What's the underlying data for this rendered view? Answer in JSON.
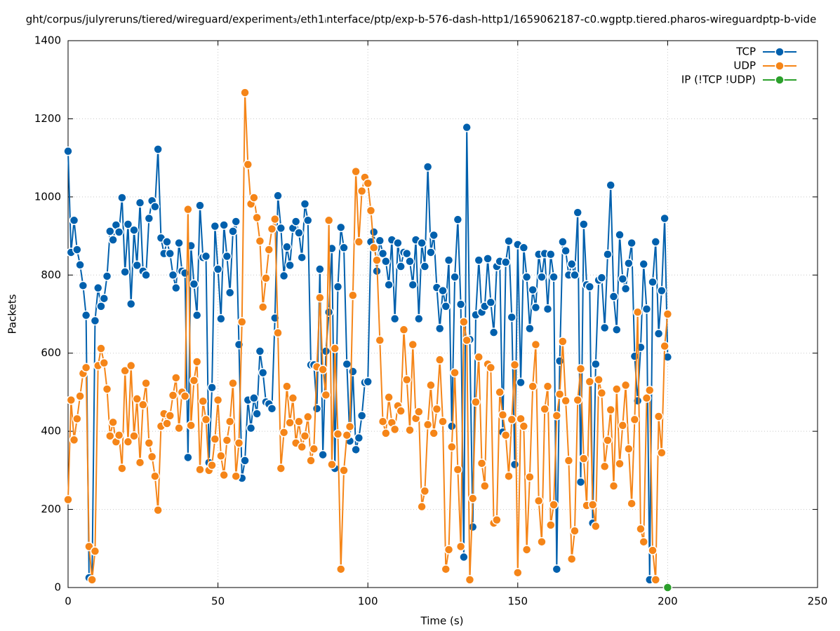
{
  "chart_data": {
    "type": "line",
    "title": "ght/corpus/julyreruns/tiered/wireguard/experiment₃/eth1ᵢnterface/ptp/exp-b-576-dash-http1/1659062187-c0.wgptp.tiered.pharos-wireguardptp-b-vide",
    "x_label": "Time (s)",
    "y_label": "Packets",
    "xlim": [
      0,
      250
    ],
    "xticks": [
      0,
      50,
      100,
      150,
      200,
      250
    ],
    "ylim": [
      0,
      1400
    ],
    "yticks": [
      0,
      200,
      400,
      600,
      800,
      1000,
      1200,
      1400
    ],
    "grid": true,
    "legend": "top-right",
    "x": [
      0,
      1,
      2,
      3,
      4,
      5,
      6,
      7,
      8,
      9,
      10,
      11,
      12,
      13,
      14,
      15,
      16,
      17,
      18,
      19,
      20,
      21,
      22,
      23,
      24,
      25,
      26,
      27,
      28,
      29,
      30,
      31,
      32,
      33,
      34,
      35,
      36,
      37,
      38,
      39,
      40,
      41,
      42,
      43,
      44,
      45,
      46,
      47,
      48,
      49,
      50,
      51,
      52,
      53,
      54,
      55,
      56,
      57,
      58,
      59,
      60,
      61,
      62,
      63,
      64,
      65,
      66,
      67,
      68,
      69,
      70,
      71,
      72,
      73,
      74,
      75,
      76,
      77,
      78,
      79,
      80,
      81,
      82,
      83,
      84,
      85,
      86,
      87,
      88,
      89,
      90,
      91,
      92,
      93,
      94,
      95,
      96,
      97,
      98,
      99,
      100,
      101,
      102,
      103,
      104,
      105,
      106,
      107,
      108,
      109,
      110,
      111,
      112,
      113,
      114,
      115,
      116,
      117,
      118,
      119,
      120,
      121,
      122,
      123,
      124,
      125,
      126,
      127,
      128,
      129,
      130,
      131,
      132,
      133,
      134,
      135,
      136,
      137,
      138,
      139,
      140,
      141,
      142,
      143,
      144,
      145,
      146,
      147,
      148,
      149,
      150,
      151,
      152,
      153,
      154,
      155,
      156,
      157,
      158,
      159,
      160,
      161,
      162,
      163,
      164,
      165,
      166,
      167,
      168,
      169,
      170,
      171,
      172,
      173,
      174,
      175,
      176,
      177,
      178,
      179,
      180,
      181,
      182,
      183,
      184,
      185,
      186,
      187,
      188,
      189,
      190,
      191,
      192,
      193,
      194,
      195,
      196,
      197,
      198,
      199,
      200
    ],
    "series": [
      {
        "name": "TCP",
        "color": "#0060ad",
        "values": [
          1117,
          858,
          940,
          865,
          826,
          773,
          697,
          25,
          20,
          683,
          767,
          720,
          740,
          797,
          912,
          890,
          928,
          910,
          998,
          808,
          930,
          726,
          915,
          825,
          985,
          810,
          800,
          945,
          990,
          975,
          1122,
          895,
          855,
          885,
          855,
          800,
          767,
          882,
          810,
          805,
          333,
          875,
          777,
          697,
          978,
          845,
          848,
          320,
          512,
          925,
          815,
          688,
          928,
          848,
          755,
          912,
          937,
          622,
          280,
          325,
          480,
          408,
          485,
          445,
          605,
          550,
          475,
          470,
          458,
          690,
          1003,
          920,
          798,
          872,
          825,
          920,
          937,
          908,
          845,
          982,
          940,
          570,
          570,
          458,
          815,
          340,
          605,
          705,
          868,
          305,
          770,
          922,
          870,
          572,
          375,
          553,
          353,
          383,
          440,
          525,
          527,
          885,
          910,
          810,
          888,
          855,
          835,
          775,
          890,
          688,
          882,
          822,
          858,
          855,
          835,
          775,
          890,
          688,
          882,
          822,
          1077,
          858,
          902,
          768,
          663,
          760,
          720,
          838,
          413,
          795,
          942,
          725,
          78,
          1178,
          635,
          155,
          698,
          838,
          705,
          720,
          842,
          730,
          653,
          822,
          835,
          398,
          833,
          887,
          692,
          315,
          878,
          525,
          870,
          795,
          663,
          762,
          717,
          853,
          795,
          855,
          713,
          853,
          795,
          47,
          580,
          885,
          862,
          800,
          828,
          800,
          960,
          270,
          930,
          775,
          770,
          165,
          572,
          787,
          793,
          665,
          853,
          1030,
          745,
          660,
          903,
          790,
          765,
          830,
          882,
          592,
          478,
          615,
          828,
          713,
          20,
          782,
          885,
          650,
          760,
          945,
          590
        ]
      },
      {
        "name": "UDP",
        "color": "#f58518",
        "values": [
          225,
          480,
          378,
          432,
          490,
          548,
          563,
          105,
          20,
          93,
          568,
          612,
          575,
          508,
          388,
          423,
          373,
          390,
          305,
          555,
          373,
          568,
          388,
          483,
          320,
          468,
          523,
          370,
          335,
          285,
          198,
          413,
          445,
          420,
          440,
          492,
          537,
          408,
          500,
          490,
          968,
          415,
          530,
          578,
          302,
          477,
          430,
          300,
          313,
          380,
          480,
          337,
          288,
          377,
          425,
          523,
          285,
          370,
          680,
          1267,
          1083,
          982,
          998,
          947,
          887,
          718,
          792,
          865,
          918,
          943,
          652,
          305,
          397,
          515,
          422,
          485,
          370,
          425,
          360,
          388,
          437,
          325,
          355,
          565,
          742,
          558,
          493,
          940,
          315,
          612,
          393,
          47,
          300,
          390,
          412,
          748,
          1065,
          885,
          1015,
          1050,
          1035,
          965,
          870,
          838,
          633,
          425,
          395,
          487,
          422,
          405,
          465,
          452,
          660,
          532,
          403,
          622,
          433,
          450,
          207,
          247,
          417,
          518,
          395,
          457,
          583,
          425,
          47,
          97,
          360,
          550,
          302,
          105,
          680,
          633,
          20,
          228,
          475,
          590,
          318,
          260,
          572,
          563,
          165,
          173,
          500,
          442,
          390,
          285,
          430,
          570,
          38,
          432,
          413,
          97,
          283,
          515,
          622,
          222,
          117,
          457,
          515,
          160,
          212,
          440,
          495,
          630,
          478,
          325,
          73,
          145,
          480,
          560,
          330,
          210,
          527,
          212,
          157,
          532,
          498,
          310,
          377,
          455,
          260,
          508,
          317,
          415,
          518,
          355,
          215,
          430,
          705,
          150,
          117,
          485,
          505,
          95,
          20,
          438,
          345,
          618,
          700
        ]
      },
      {
        "name": "IP (!TCP  !UDP)",
        "color": "#2ca02c",
        "x": [
          200
        ],
        "values": [
          0
        ]
      }
    ]
  }
}
